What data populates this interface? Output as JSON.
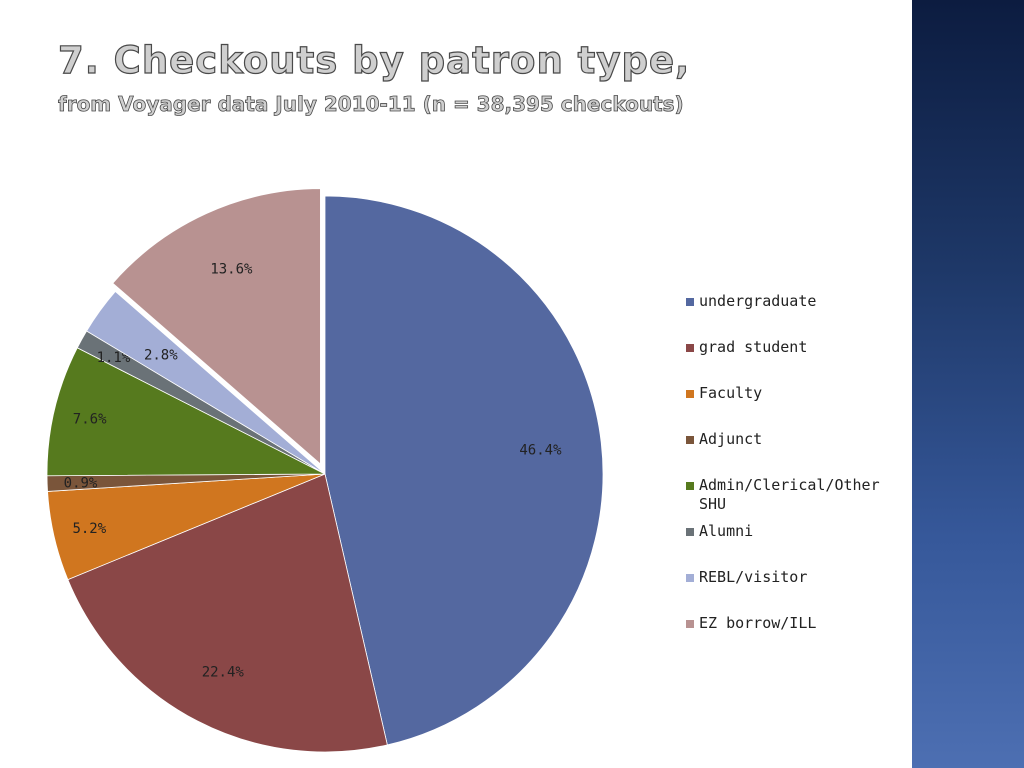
{
  "title": "7. Checkouts by patron type,",
  "subtitle": "from Voyager data July 2010-11 (n = 38,395 checkouts)",
  "chart_data": {
    "type": "pie",
    "categories": [
      "undergraduate",
      "grad student",
      "Faculty",
      "Adjunct",
      "Admin/Clerical/Other SHU",
      "Alumni",
      "REBL/visitor",
      "EZ borrow/ILL"
    ],
    "values": [
      46.4,
      22.4,
      5.2,
      0.9,
      7.6,
      1.1,
      2.8,
      13.6
    ],
    "labels": [
      "46.4%",
      "22.4%",
      "5.2%",
      "0.9%",
      "7.6%",
      "1.1%",
      "2.8%",
      "13.6%"
    ],
    "colors": [
      "#5468a0",
      "#8a4747",
      "#d0761f",
      "#7a553a",
      "#567a1e",
      "#6a7277",
      "#a3aed6",
      "#b89291"
    ],
    "exploded": [
      "EZ borrow/ILL"
    ],
    "legend_position": "right"
  }
}
